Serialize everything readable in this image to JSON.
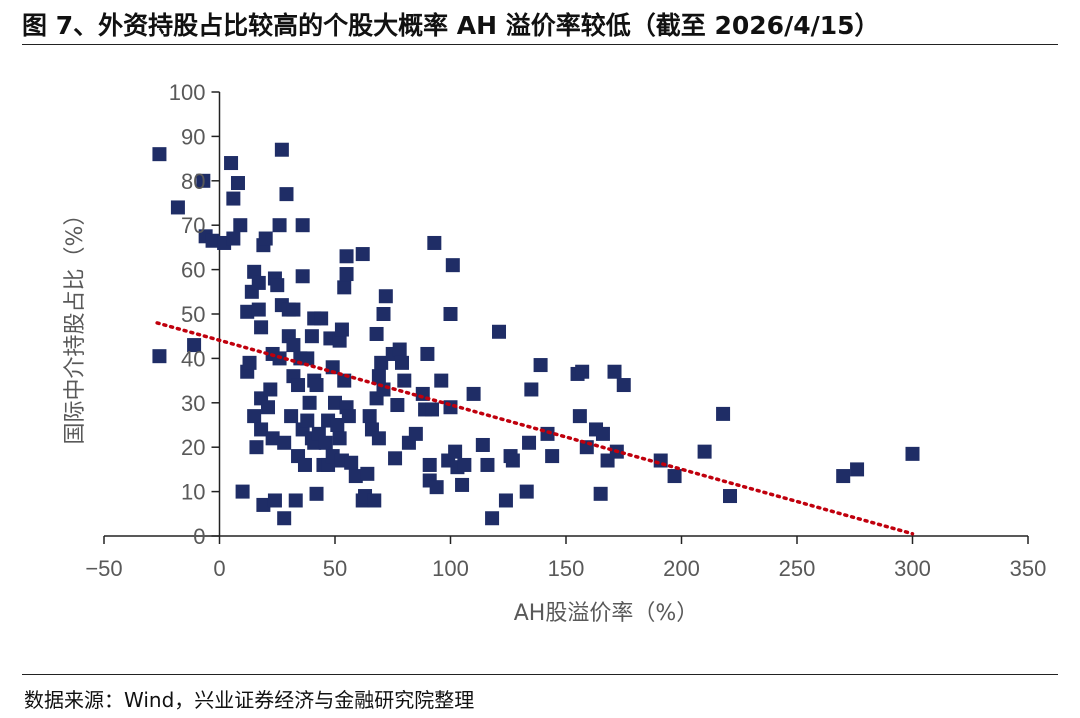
{
  "figure_title": "图 7、外资持股占比较高的个股大概率 AH 溢价率较低（截至 2026/4/15）",
  "source_note": "数据来源：Wind，兴业证券经济与金融研究院整理",
  "colors": {
    "marker": "#1f2d66",
    "trendline": "#c0000d",
    "axis": "#222222",
    "tick_text": "#595959"
  },
  "chart_data": {
    "type": "scatter",
    "xlabel": "AH股溢价率（%）",
    "ylabel": "国际中介持股占比（%）",
    "xlim": [
      -50,
      350
    ],
    "ylim": [
      0,
      100
    ],
    "x_ticks": [
      "−50",
      "0",
      "50",
      "100",
      "150",
      "200",
      "250",
      "300",
      "350"
    ],
    "y_ticks": [
      "0",
      "10",
      "20",
      "30",
      "40",
      "50",
      "60",
      "70",
      "80",
      "90",
      "100"
    ],
    "trendline": {
      "style": "dotted",
      "x": [
        -27,
        300
      ],
      "y": [
        48,
        0.5
      ]
    },
    "points": [
      [
        -26,
        86
      ],
      [
        -26,
        40.5
      ],
      [
        -18,
        74
      ],
      [
        -11,
        43
      ],
      [
        -7,
        80
      ],
      [
        -6,
        67.5
      ],
      [
        -3,
        66.5
      ],
      [
        2,
        66
      ],
      [
        5,
        84
      ],
      [
        6,
        67
      ],
      [
        6,
        76
      ],
      [
        8,
        79.5
      ],
      [
        9,
        70
      ],
      [
        10,
        10
      ],
      [
        12,
        50.5
      ],
      [
        12,
        37
      ],
      [
        13,
        39
      ],
      [
        14,
        55
      ],
      [
        15,
        59.5
      ],
      [
        15,
        27
      ],
      [
        16,
        20
      ],
      [
        17,
        57
      ],
      [
        17,
        51
      ],
      [
        18,
        47
      ],
      [
        18,
        31
      ],
      [
        18,
        24
      ],
      [
        19,
        65.5
      ],
      [
        19,
        7
      ],
      [
        20,
        67
      ],
      [
        21,
        29
      ],
      [
        22,
        33
      ],
      [
        23,
        41
      ],
      [
        23,
        22
      ],
      [
        24,
        58
      ],
      [
        24,
        8
      ],
      [
        25,
        56.5
      ],
      [
        26,
        70
      ],
      [
        26,
        40
      ],
      [
        27,
        52
      ],
      [
        27,
        87
      ],
      [
        28,
        4
      ],
      [
        28,
        21
      ],
      [
        29,
        77
      ],
      [
        30,
        51
      ],
      [
        30,
        45
      ],
      [
        31,
        27
      ],
      [
        32,
        43
      ],
      [
        32,
        51
      ],
      [
        32,
        36
      ],
      [
        33,
        8
      ],
      [
        34,
        34
      ],
      [
        34,
        18
      ],
      [
        35,
        40
      ],
      [
        36,
        70
      ],
      [
        36,
        58.5
      ],
      [
        36,
        24
      ],
      [
        37,
        16
      ],
      [
        38,
        40
      ],
      [
        38,
        26
      ],
      [
        39,
        30
      ],
      [
        40,
        45
      ],
      [
        40,
        22
      ],
      [
        41,
        35
      ],
      [
        41,
        21
      ],
      [
        41,
        49
      ],
      [
        42,
        34
      ],
      [
        42,
        9.5
      ],
      [
        43,
        23
      ],
      [
        44,
        49
      ],
      [
        45,
        16
      ],
      [
        46,
        21
      ],
      [
        47,
        26
      ],
      [
        47,
        16
      ],
      [
        48,
        44.5
      ],
      [
        49,
        38
      ],
      [
        49,
        18
      ],
      [
        50,
        30
      ],
      [
        51,
        25
      ],
      [
        52,
        44
      ],
      [
        52,
        22
      ],
      [
        53,
        46.5
      ],
      [
        53,
        17
      ],
      [
        54,
        56
      ],
      [
        54,
        35
      ],
      [
        55,
        63
      ],
      [
        55,
        59
      ],
      [
        55,
        29
      ],
      [
        56,
        27
      ],
      [
        57,
        16.5
      ],
      [
        59,
        13.5
      ],
      [
        62,
        8
      ],
      [
        62,
        63.5
      ],
      [
        63,
        9
      ],
      [
        64,
        14
      ],
      [
        65,
        27
      ],
      [
        66,
        24
      ],
      [
        67,
        8
      ],
      [
        68,
        45.5
      ],
      [
        68,
        31
      ],
      [
        69,
        22
      ],
      [
        69,
        36
      ],
      [
        70,
        39
      ],
      [
        71,
        50
      ],
      [
        71,
        33
      ],
      [
        72,
        54
      ],
      [
        75,
        41
      ],
      [
        76,
        17.5
      ],
      [
        77,
        29.5
      ],
      [
        78,
        42
      ],
      [
        79,
        39
      ],
      [
        80,
        35
      ],
      [
        82,
        21
      ],
      [
        85,
        23
      ],
      [
        88,
        32
      ],
      [
        89,
        28.5
      ],
      [
        90,
        41
      ],
      [
        91,
        12.5
      ],
      [
        91,
        16
      ],
      [
        92,
        28.5
      ],
      [
        93,
        66
      ],
      [
        94,
        11
      ],
      [
        96,
        35
      ],
      [
        99,
        17
      ],
      [
        100,
        50
      ],
      [
        101,
        61
      ],
      [
        100,
        29
      ],
      [
        102,
        19
      ],
      [
        103,
        15.5
      ],
      [
        105,
        11.5
      ],
      [
        106,
        16
      ],
      [
        110,
        32
      ],
      [
        114,
        20.5
      ],
      [
        116,
        16
      ],
      [
        118,
        4
      ],
      [
        121,
        46
      ],
      [
        124,
        8
      ],
      [
        126,
        18
      ],
      [
        127,
        17
      ],
      [
        133,
        10
      ],
      [
        134,
        21
      ],
      [
        135,
        33
      ],
      [
        139,
        38.5
      ],
      [
        142,
        23
      ],
      [
        144,
        18
      ],
      [
        155,
        36.5
      ],
      [
        156,
        27
      ],
      [
        157,
        37
      ],
      [
        159,
        20
      ],
      [
        163,
        24
      ],
      [
        165,
        9.5
      ],
      [
        166,
        23
      ],
      [
        168,
        17
      ],
      [
        171,
        37
      ],
      [
        172,
        19
      ],
      [
        175,
        34
      ],
      [
        191,
        17
      ],
      [
        197,
        13.5
      ],
      [
        210,
        19
      ],
      [
        218,
        27.5
      ],
      [
        221,
        9
      ],
      [
        270,
        13.5
      ],
      [
        276,
        15
      ],
      [
        300,
        18.5
      ]
    ]
  }
}
